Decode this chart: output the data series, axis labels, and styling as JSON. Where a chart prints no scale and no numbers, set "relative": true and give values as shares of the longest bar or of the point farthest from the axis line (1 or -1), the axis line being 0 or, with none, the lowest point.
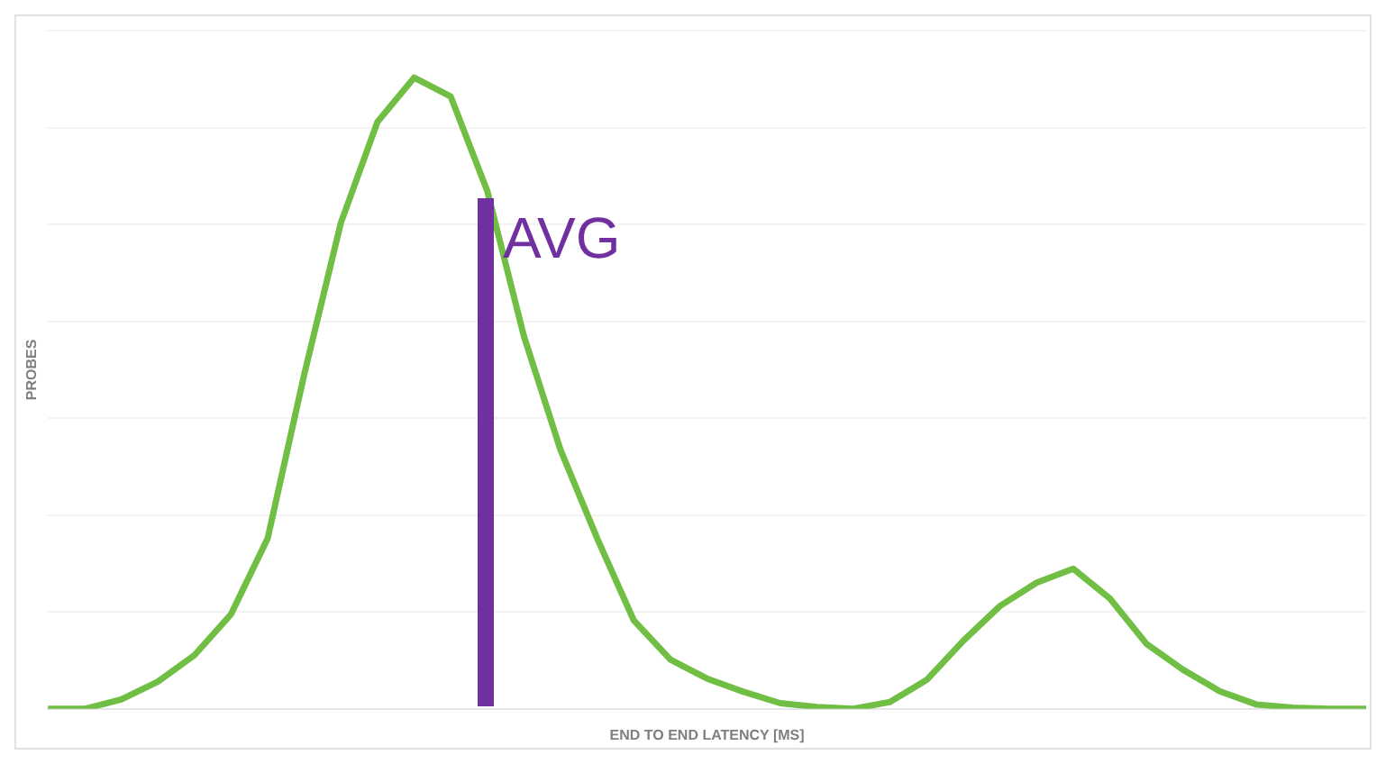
{
  "chart_data": {
    "type": "line",
    "relative": true,
    "xlabel": "END TO END LATENCY [MS]",
    "ylabel": "PROBES",
    "grid": "y",
    "legend": false,
    "marker": "none",
    "categories": [
      null,
      null,
      null,
      null,
      null,
      null,
      null,
      null,
      null,
      null,
      null,
      null,
      null,
      null,
      null,
      null,
      null,
      null,
      null,
      null,
      null,
      null,
      null,
      null,
      null,
      null,
      null,
      null,
      null,
      null,
      null,
      null,
      null,
      null,
      null,
      null,
      null
    ],
    "series": [
      {
        "color": "#70bf44",
        "values": [
          0,
          0,
          0.015,
          0.043,
          0.085,
          0.15,
          0.27,
          0.53,
          0.77,
          0.93,
          1,
          0.97,
          0.82,
          0.59,
          0.41,
          0.27,
          0.14,
          0.078,
          0.048,
          0.027,
          0.009,
          0.003,
          0,
          0.011,
          0.046,
          0.108,
          0.163,
          0.2,
          0.222,
          0.175,
          0.103,
          0.062,
          0.028,
          0.007,
          0.002,
          0,
          0
        ]
      }
    ],
    "annotations": [
      "AVG"
    ]
  }
}
